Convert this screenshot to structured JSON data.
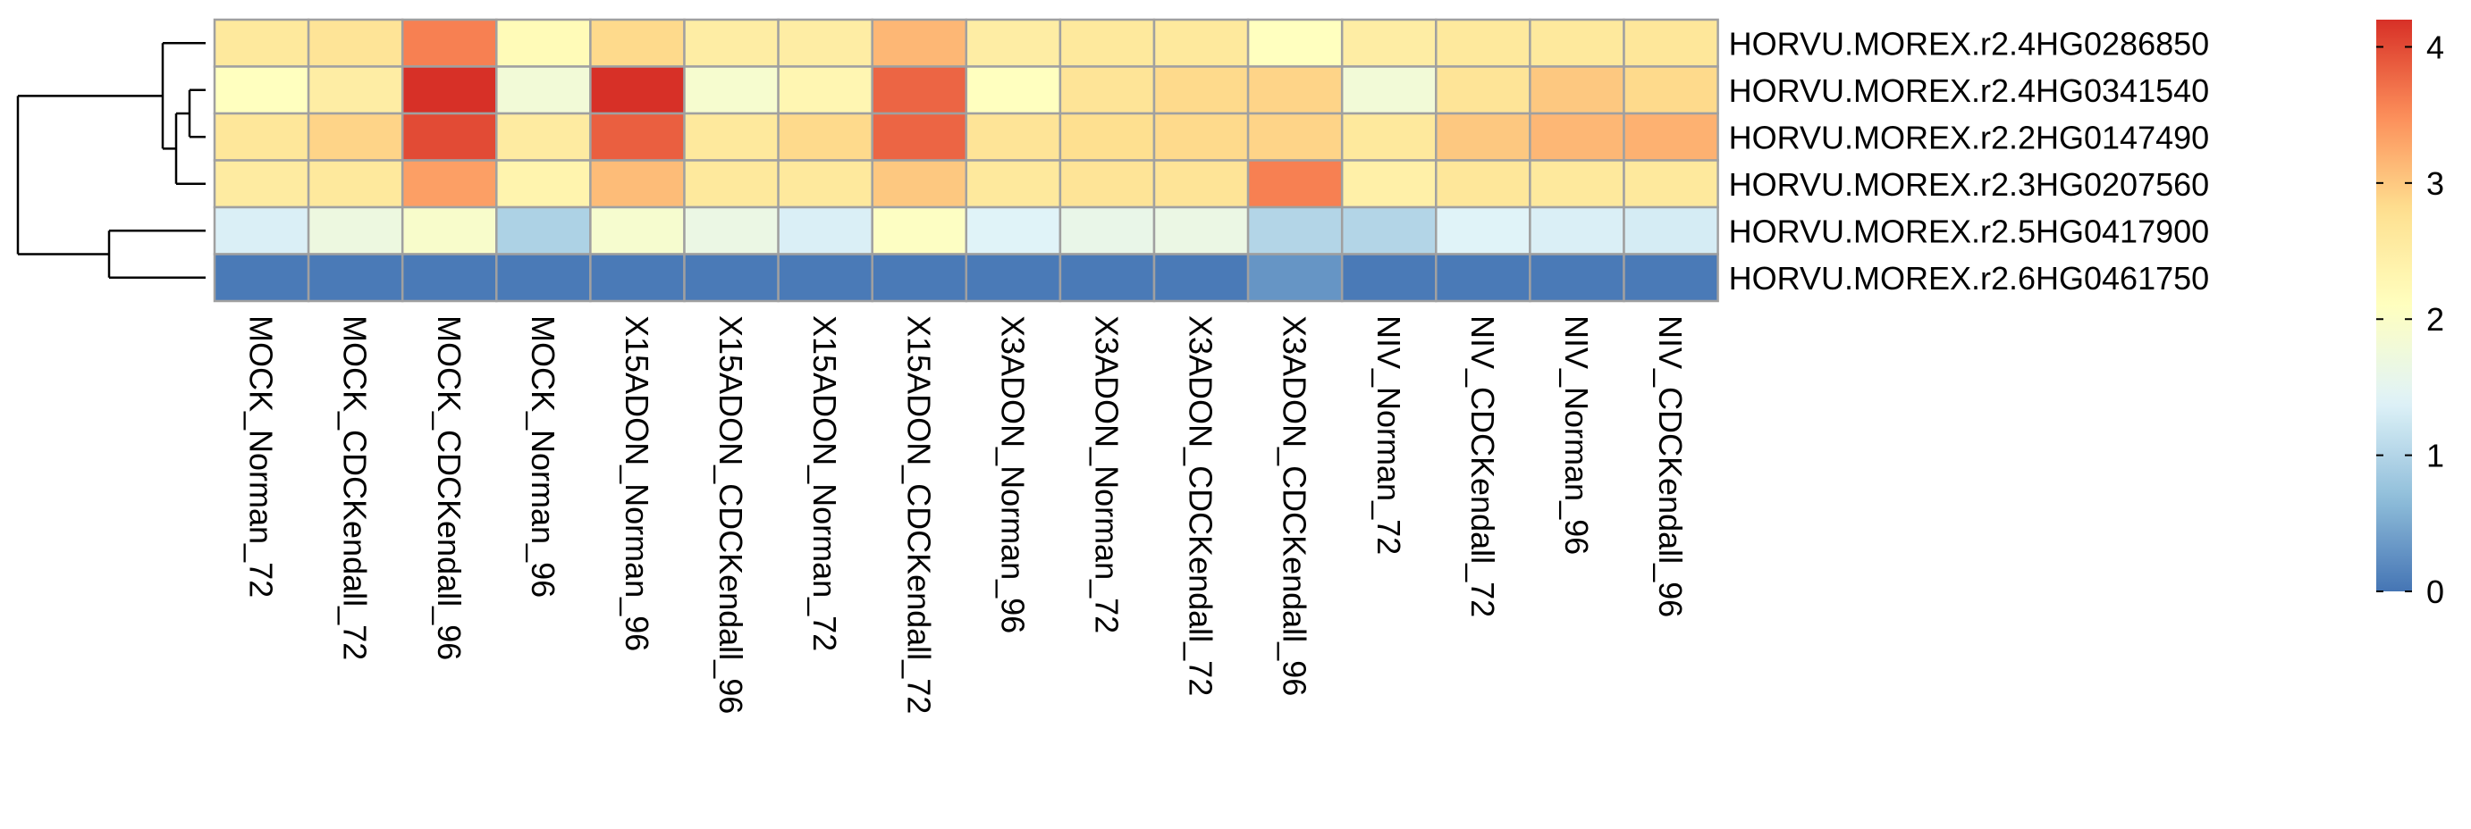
{
  "chart_data": {
    "type": "heatmap",
    "title": "",
    "rows": [
      "HORVU.MOREX.r2.4HG0286850",
      "HORVU.MOREX.r2.4HG0341540",
      "HORVU.MOREX.r2.2HG0147490",
      "HORVU.MOREX.r2.3HG0207560",
      "HORVU.MOREX.r2.5HG0417900",
      "HORVU.MOREX.r2.6HG0461750"
    ],
    "columns": [
      "MOCK_Norman_72",
      "MOCK_CDCKendall_72",
      "MOCK_CDCKendall_96",
      "MOCK_Norman_96",
      "X15ADON_Norman_96",
      "X15ADON_CDCKendall_96",
      "X15ADON_Norman_72",
      "X15ADON_CDCKendall_72",
      "X3ADON_Norman_96",
      "X3ADON_Norman_72",
      "X3ADON_CDCKendall_72",
      "X3ADON_CDCKendall_96",
      "NIV_Norman_72",
      "NIV_CDCKendall_72",
      "NIV_Norman_96",
      "NIV_CDCKendall_96"
    ],
    "values": [
      [
        2.6,
        2.7,
        3.6,
        2.2,
        2.85,
        2.5,
        2.5,
        3.15,
        2.5,
        2.6,
        2.6,
        2.1,
        2.5,
        2.6,
        2.6,
        2.65
      ],
      [
        2.1,
        2.5,
        4.2,
        1.8,
        4.2,
        1.9,
        2.3,
        3.8,
        2.1,
        2.7,
        2.85,
        2.9,
        1.8,
        2.7,
        3.0,
        2.85
      ],
      [
        2.65,
        2.9,
        4.0,
        2.55,
        3.85,
        2.6,
        2.85,
        3.8,
        2.7,
        2.8,
        2.85,
        2.9,
        2.6,
        3.0,
        3.15,
        3.2
      ],
      [
        2.55,
        2.6,
        3.35,
        2.35,
        3.1,
        2.6,
        2.6,
        3.0,
        2.6,
        2.7,
        2.7,
        3.6,
        2.45,
        2.65,
        2.6,
        2.6
      ],
      [
        1.35,
        1.7,
        1.95,
        0.95,
        1.9,
        1.65,
        1.35,
        2.05,
        1.4,
        1.6,
        1.65,
        1.0,
        1.0,
        1.4,
        1.35,
        1.3
      ],
      [
        0.05,
        0.05,
        0.05,
        0.05,
        0.05,
        0.05,
        0.05,
        0.05,
        0.05,
        0.05,
        0.05,
        0.3,
        0.05,
        0.05,
        0.05,
        0.05
      ]
    ],
    "color_range": [
      0,
      4.2
    ],
    "colors": [
      "#4575B4",
      "#91BFDB",
      "#E0F3F8",
      "#FFFFBF",
      "#FEE090",
      "#FC8D59",
      "#D73027"
    ],
    "cell_border_color": "#A0A0A0",
    "legend": {
      "ticks": [
        "0",
        "1",
        "2",
        "3",
        "4"
      ],
      "tick_values": [
        0,
        1,
        2,
        3,
        4
      ],
      "placement": "right"
    },
    "row_dendrogram": true,
    "row_dendrogram_merges": [
      {
        "a": 1,
        "b": 2,
        "height": 0.3
      },
      {
        "a": "m0",
        "b": 3,
        "height": 0.55
      },
      {
        "a": "m1",
        "b": 0,
        "height": 0.8
      },
      {
        "a": 4,
        "b": 5,
        "height": 1.8
      },
      {
        "a": "m2",
        "b": "m3",
        "height": 3.5
      }
    ]
  }
}
